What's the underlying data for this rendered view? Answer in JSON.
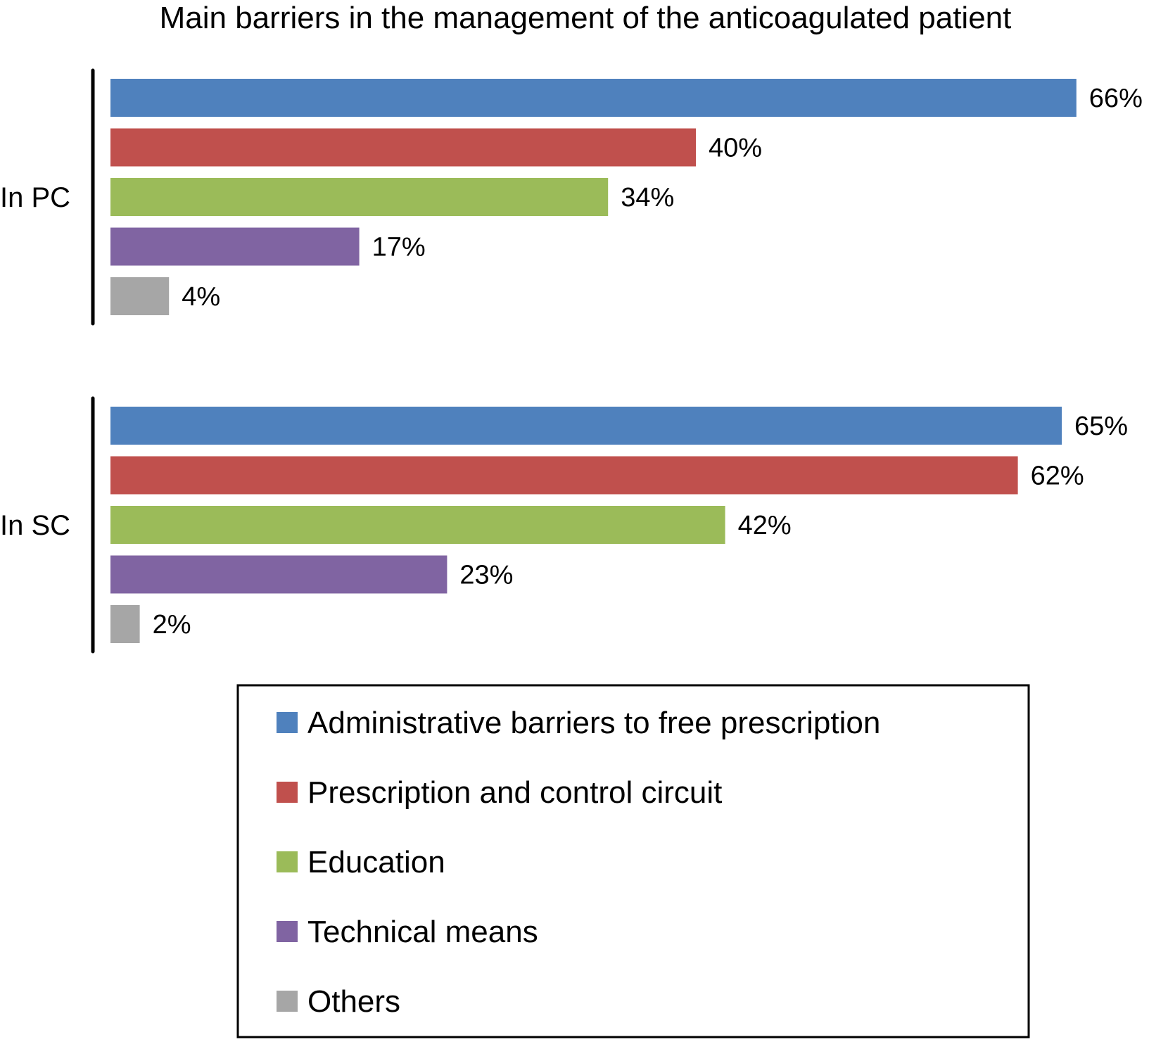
{
  "chart_data": {
    "type": "bar",
    "orientation": "horizontal",
    "title": "Main barriers in the management of the anticoagulated patient",
    "groups": [
      "In PC",
      "In SC"
    ],
    "series": [
      {
        "name": "Administrative barriers to free prescription",
        "color": "#4F81BD",
        "values": [
          66,
          65
        ],
        "labels": [
          "66%",
          "65%"
        ]
      },
      {
        "name": "Prescription and control circuit",
        "color": "#C0504D",
        "values": [
          40,
          62
        ],
        "labels": [
          "40%",
          "62%"
        ]
      },
      {
        "name": "Education",
        "color": "#9BBB59",
        "values": [
          34,
          42
        ],
        "labels": [
          "34%",
          "42%"
        ]
      },
      {
        "name": "Technical means",
        "color": "#8064A2",
        "values": [
          17,
          23
        ],
        "labels": [
          "17%",
          "23%"
        ]
      },
      {
        "name": "Others",
        "color": "#A6A6A6",
        "values": [
          4,
          2
        ],
        "labels": [
          "4%",
          "2%"
        ]
      }
    ],
    "unit": "%",
    "legend_position": "bottom",
    "grid": false
  }
}
